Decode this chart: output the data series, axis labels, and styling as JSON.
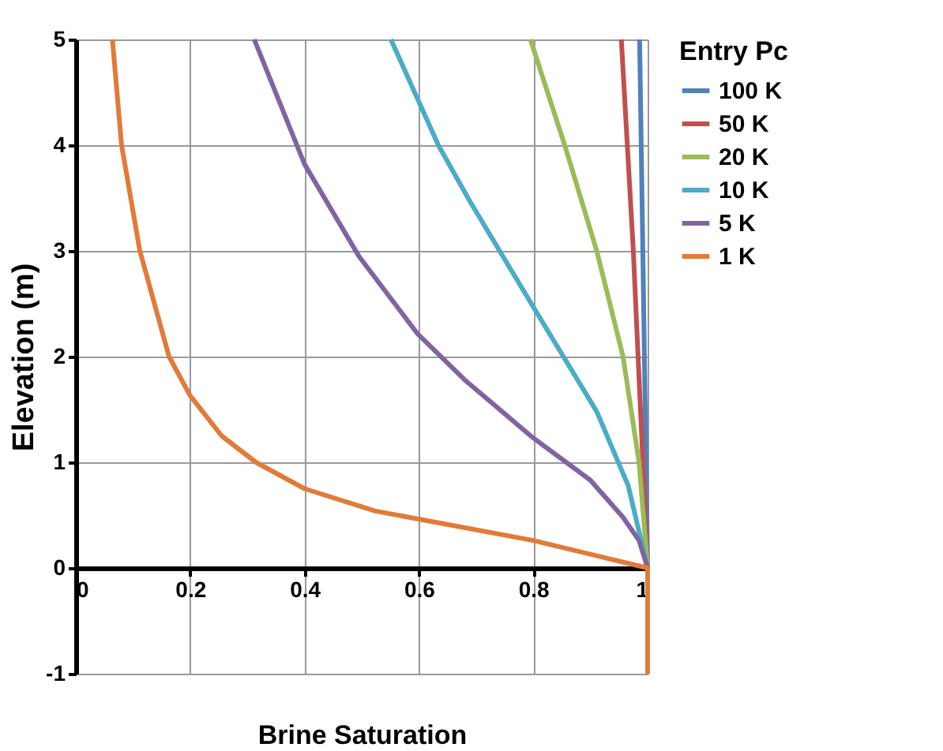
{
  "chart_data": {
    "type": "line",
    "xlabel": "Brine Saturation",
    "ylabel": "Elevation (m)",
    "legend_title": "Entry Pc",
    "xlim": [
      0,
      1
    ],
    "ylim": [
      -1,
      5
    ],
    "xticks": [
      0,
      0.2,
      0.4,
      0.6,
      0.8,
      1
    ],
    "yticks": [
      -1,
      0,
      1,
      2,
      3,
      4,
      5
    ],
    "grid": true,
    "legend": "right",
    "marker": "none",
    "line_style": "solid",
    "series": [
      {
        "name": "100 K",
        "color": "#4f81bd",
        "x": [
          0.986,
          1,
          1
        ],
        "values": [
          5,
          0,
          -1
        ]
      },
      {
        "name": "50 K",
        "color": "#c0504d",
        "x": [
          0.954,
          0.975,
          1,
          1
        ],
        "values": [
          5,
          3,
          0,
          -1
        ]
      },
      {
        "name": "20 K",
        "color": "#9bbb59",
        "x": [
          0.795,
          0.855,
          0.911,
          0.957,
          0.985,
          1,
          1
        ],
        "values": [
          5,
          4,
          3,
          2,
          1,
          0,
          -1
        ]
      },
      {
        "name": "10 K",
        "color": "#4bacc6",
        "x": [
          0.551,
          0.634,
          0.689,
          0.8,
          0.911,
          0.966,
          1,
          1
        ],
        "values": [
          5,
          4,
          3.47,
          2.47,
          1.48,
          0.78,
          0,
          -1
        ]
      },
      {
        "name": "5 K",
        "color": "#8064a2",
        "x": [
          0.312,
          0.4,
          0.495,
          0.597,
          0.68,
          0.8,
          0.9,
          0.957,
          0.985,
          1,
          1
        ],
        "values": [
          5,
          3.82,
          2.95,
          2.22,
          1.78,
          1.23,
          0.83,
          0.48,
          0.26,
          0,
          -1
        ]
      },
      {
        "name": "1 K",
        "color": "#e07b39",
        "x": [
          0.064,
          0.08,
          0.112,
          0.163,
          0.2,
          0.255,
          0.315,
          0.4,
          0.523,
          0.8,
          1,
          1
        ],
        "values": [
          5,
          4,
          3,
          2,
          1.63,
          1.25,
          1.0,
          0.75,
          0.54,
          0.26,
          0,
          -1
        ]
      }
    ]
  }
}
